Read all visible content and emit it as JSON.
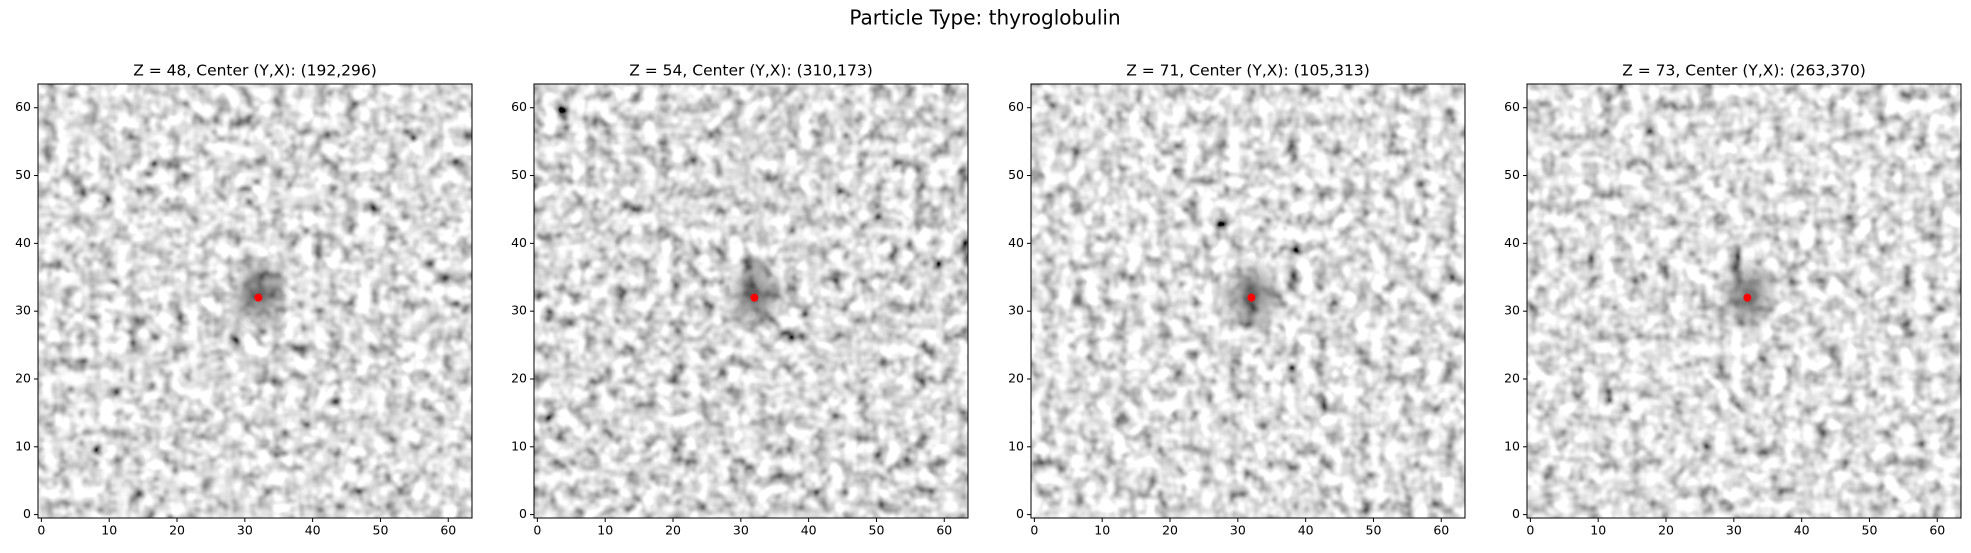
{
  "title": "Particle Type: thyroglobulin",
  "chart_data": [
    {
      "type": "image",
      "title": "Z = 48, Center (Y,X): (192,296)",
      "xlim": [
        -0.5,
        63.5
      ],
      "ylim": [
        -0.5,
        63.5
      ],
      "xticks": [
        0,
        10,
        20,
        30,
        40,
        50,
        60
      ],
      "yticks": [
        0,
        10,
        20,
        30,
        40,
        50,
        60
      ],
      "points": {
        "x": [
          32
        ],
        "y": [
          32
        ],
        "color": "#ff0000"
      }
    },
    {
      "type": "image",
      "title": "Z = 54, Center (Y,X): (310,173)",
      "xlim": [
        -0.5,
        63.5
      ],
      "ylim": [
        -0.5,
        63.5
      ],
      "xticks": [
        0,
        10,
        20,
        30,
        40,
        50,
        60
      ],
      "yticks": [
        0,
        10,
        20,
        30,
        40,
        50,
        60
      ],
      "points": {
        "x": [
          32
        ],
        "y": [
          32
        ],
        "color": "#ff0000"
      }
    },
    {
      "type": "image",
      "title": "Z = 71, Center (Y,X): (105,313)",
      "xlim": [
        -0.5,
        63.5
      ],
      "ylim": [
        -0.5,
        63.5
      ],
      "xticks": [
        0,
        10,
        20,
        30,
        40,
        50,
        60
      ],
      "yticks": [
        0,
        10,
        20,
        30,
        40,
        50,
        60
      ],
      "points": {
        "x": [
          32
        ],
        "y": [
          32
        ],
        "color": "#ff0000"
      }
    },
    {
      "type": "image",
      "title": "Z = 73, Center (Y,X): (263,370)",
      "xlim": [
        -0.5,
        63.5
      ],
      "ylim": [
        -0.5,
        63.5
      ],
      "xticks": [
        0,
        10,
        20,
        30,
        40,
        50,
        60
      ],
      "yticks": [
        0,
        10,
        20,
        30,
        40,
        50,
        60
      ],
      "points": {
        "x": [
          32
        ],
        "y": [
          32
        ],
        "color": "#ff0000"
      }
    }
  ]
}
